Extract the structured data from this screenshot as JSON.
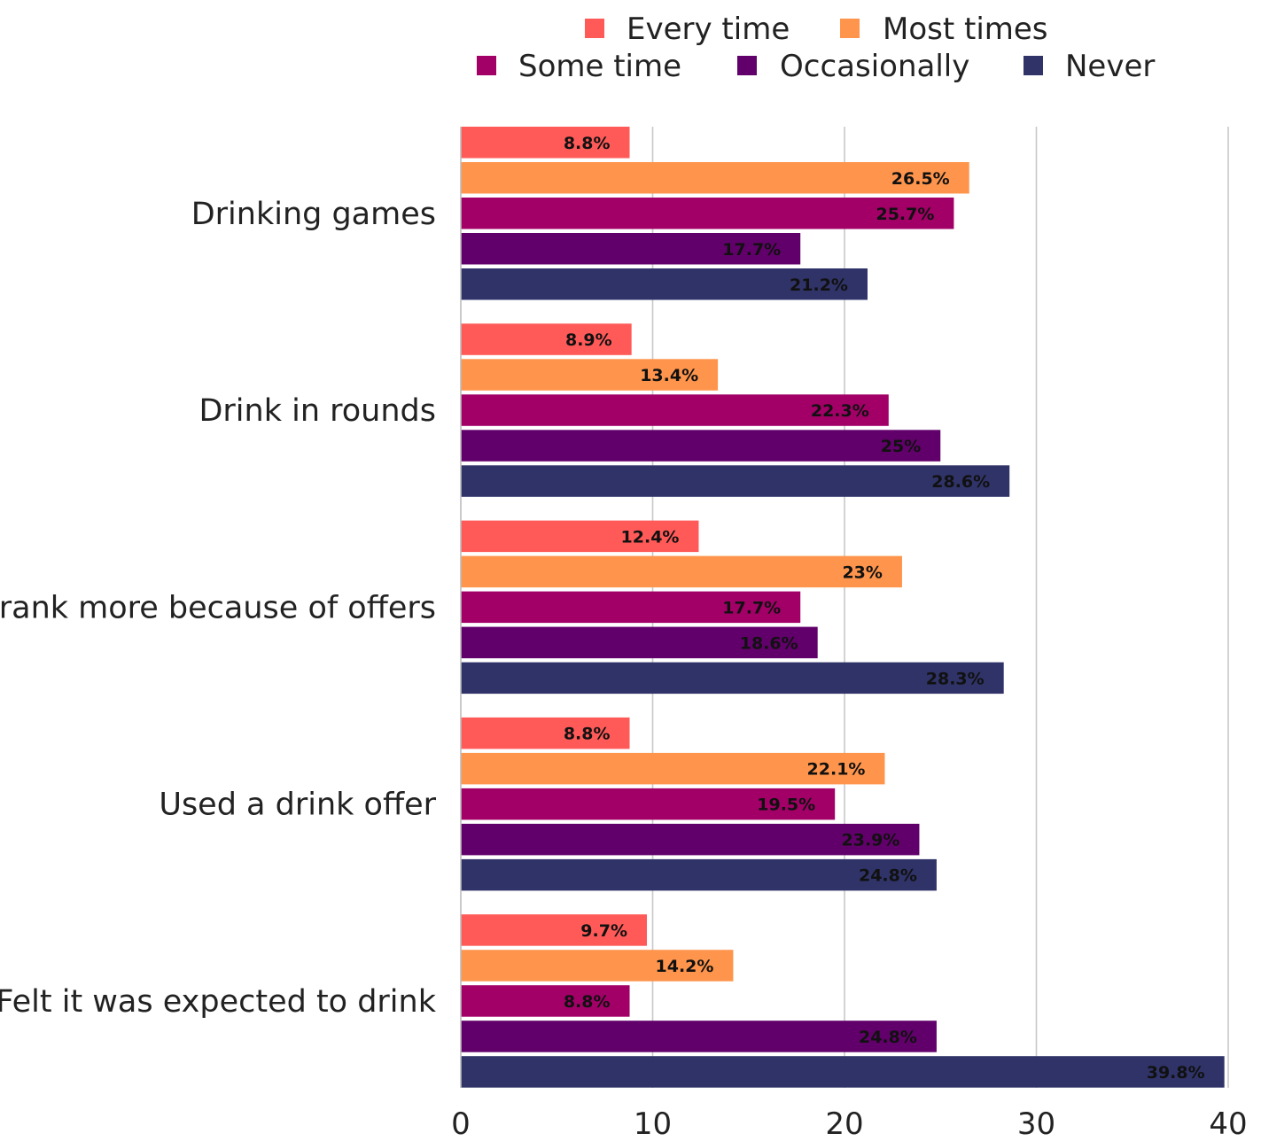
{
  "chart_data": {
    "type": "bar",
    "orientation": "horizontal",
    "title": "",
    "xlabel": "",
    "ylabel": "",
    "xlim": [
      0,
      40
    ],
    "x_ticks": [
      "0",
      "10",
      "20",
      "30",
      "40"
    ],
    "grid": true,
    "legend_position": "top",
    "categories": [
      "Drinking games",
      "Drink in rounds",
      "Drank more because of offers",
      "Used a drink offer",
      "Felt it was expected to drink"
    ],
    "series": [
      {
        "name": "Every time",
        "color": "#ff5a58",
        "values": [
          8.8,
          8.9,
          12.4,
          8.8,
          9.7
        ],
        "labels": [
          "8.8%",
          "8.9%",
          "12.4%",
          "8.8%",
          "9.7%"
        ]
      },
      {
        "name": "Most times",
        "color": "#ff954c",
        "values": [
          26.5,
          13.4,
          23,
          22.1,
          14.2
        ],
        "labels": [
          "26.5%",
          "13.4%",
          "23%",
          "22.1%",
          "14.2%"
        ]
      },
      {
        "name": "Some time",
        "color": "#a20067",
        "values": [
          25.7,
          22.3,
          17.7,
          19.5,
          8.8
        ],
        "labels": [
          "25.7%",
          "22.3%",
          "17.7%",
          "19.5%",
          "8.8%"
        ]
      },
      {
        "name": "Occasionally",
        "color": "#62006b",
        "values": [
          17.7,
          25,
          18.6,
          23.9,
          24.8
        ],
        "labels": [
          "17.7%",
          "25%",
          "18.6%",
          "23.9%",
          "24.8%"
        ]
      },
      {
        "name": "Never",
        "color": "#2f3368",
        "values": [
          21.2,
          28.6,
          28.3,
          24.8,
          39.8
        ],
        "labels": [
          "21.2%",
          "28.6%",
          "28.3%",
          "24.8%",
          "39.8%"
        ]
      }
    ]
  }
}
